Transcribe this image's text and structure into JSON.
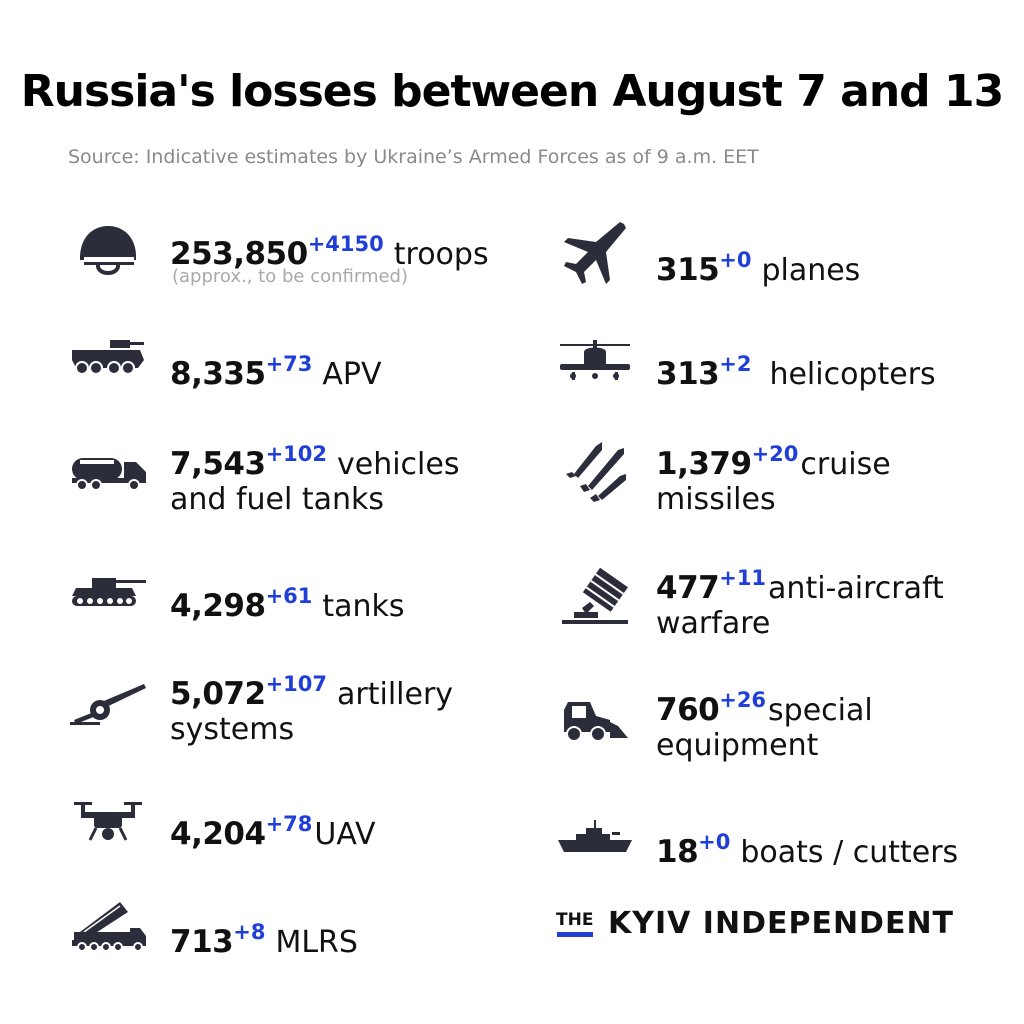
{
  "title": "Russia's losses between August 7 and 13",
  "source": "Source: Indicative estimates by Ukraine’s Armed Forces as of 9 a.m. EET",
  "accent_color": "#1f3fd6",
  "items": [
    {
      "icon": "helmet-icon",
      "value": "253,850",
      "delta": "+4150",
      "label": "troops",
      "label2": "",
      "note": "(approx., to be confirmed)"
    },
    {
      "icon": "apv-icon",
      "value": "8,335",
      "delta": "+73",
      "label": "APV",
      "label2": "",
      "note": ""
    },
    {
      "icon": "fuel-truck-icon",
      "value": "7,543",
      "delta": "+102",
      "label": "vehicles",
      "label2": "and fuel tanks",
      "note": ""
    },
    {
      "icon": "tank-icon",
      "value": "4,298",
      "delta": "+61",
      "label": "tanks",
      "label2": "",
      "note": ""
    },
    {
      "icon": "artillery-icon",
      "value": "5,072",
      "delta": "+107",
      "label": "artillery",
      "label2": "systems",
      "note": ""
    },
    {
      "icon": "drone-icon",
      "value": "4,204",
      "delta": "+78",
      "label": "UAV",
      "label2": "",
      "note": ""
    },
    {
      "icon": "mlrs-icon",
      "value": "713",
      "delta": "+8",
      "label": "MLRS",
      "label2": "",
      "note": ""
    },
    {
      "icon": "plane-icon",
      "value": "315",
      "delta": "+0",
      "label": "planes",
      "label2": "",
      "note": ""
    },
    {
      "icon": "helicopter-icon",
      "value": "313",
      "delta": "+2",
      "label": "helicopters",
      "label2": "",
      "note": ""
    },
    {
      "icon": "missiles-icon",
      "value": "1,379",
      "delta": "+20",
      "label": "cruise",
      "label2": "missiles",
      "note": ""
    },
    {
      "icon": "anti-aircraft-icon",
      "value": "477",
      "delta": "+11",
      "label": "anti-aircraft",
      "label2": "warfare",
      "note": ""
    },
    {
      "icon": "loader-icon",
      "value": "760",
      "delta": "+26",
      "label": "special",
      "label2": "equipment",
      "note": ""
    },
    {
      "icon": "boat-icon",
      "value": "18",
      "delta": "+0",
      "label": "boats / cutters",
      "label2": "",
      "note": ""
    }
  ],
  "brand": {
    "the": "THE",
    "name": "KYIV INDEPENDENT"
  }
}
